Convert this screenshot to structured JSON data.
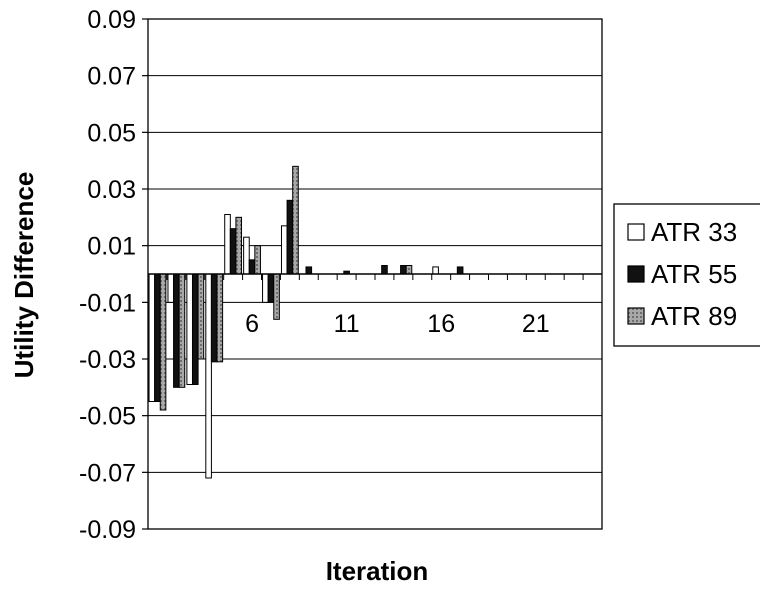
{
  "chart_data": {
    "type": "bar",
    "xlabel": "Iteration",
    "ylabel": "Utility Difference",
    "ylim": [
      -0.09,
      0.09
    ],
    "yticks": [
      "0.09",
      "0.07",
      "0.05",
      "0.03",
      "0.01",
      "-0.01",
      "-0.03",
      "-0.05",
      "-0.07",
      "-0.09"
    ],
    "xtick_labels": [
      "6",
      "11",
      "16",
      "21"
    ],
    "xtick_positions": [
      6,
      11,
      16,
      21
    ],
    "x": [
      1,
      2,
      3,
      4,
      5,
      6,
      7,
      8,
      9,
      10,
      11,
      12,
      13,
      14,
      15,
      16,
      17,
      18,
      19,
      20,
      21,
      22,
      23,
      24
    ],
    "grid": "horizontal",
    "legend": {
      "placement": "right"
    },
    "series": [
      {
        "name": "ATR 33",
        "color": "#ffffff",
        "values": [
          -0.045,
          -0.01,
          -0.039,
          -0.072,
          0.021,
          0.013,
          -0.01,
          0.017,
          0,
          0,
          0,
          0,
          0,
          0,
          0,
          0.0025,
          0,
          0,
          0,
          0,
          0,
          0,
          0,
          0
        ]
      },
      {
        "name": "ATR 55",
        "color": "#111111",
        "values": [
          -0.045,
          -0.04,
          -0.039,
          -0.031,
          0.016,
          0.005,
          -0.01,
          0.026,
          0.0025,
          0,
          0.001,
          0,
          0.003,
          0.003,
          0,
          0,
          0.0025,
          0,
          0,
          0,
          0,
          0,
          0,
          0
        ]
      },
      {
        "name": "ATR 89",
        "color": "#9a9a9a",
        "values": [
          -0.048,
          -0.04,
          -0.03,
          -0.031,
          0.02,
          0.01,
          -0.016,
          0.038,
          0,
          0,
          0,
          0,
          0,
          0.003,
          0,
          0,
          0,
          0,
          0,
          0,
          0,
          0,
          0,
          0
        ]
      }
    ]
  }
}
